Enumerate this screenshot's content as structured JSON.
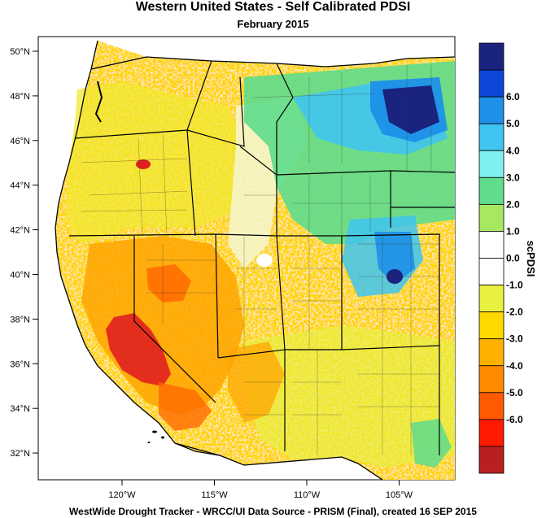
{
  "title": "Western United States - Self Calibrated PDSI",
  "subtitle": "February 2015",
  "footer": "WestWide Drought Tracker - WRCC/UI  Data Source - PRISM (Final), created 16 SEP 2015",
  "lat_ticks": [
    "50°N",
    "48°N",
    "46°N",
    "44°N",
    "42°N",
    "40°N",
    "38°N",
    "36°N",
    "34°N",
    "32°N"
  ],
  "lon_ticks": [
    "120°W",
    "115°W",
    "110°W",
    "105°W"
  ],
  "colorbar": {
    "title": "scPDSI",
    "labels": [
      "6.0",
      "5.0",
      "4.0",
      "3.0",
      "2.0",
      "1.0",
      "0.0",
      "-1.0",
      "-2.0",
      "-3.0",
      "-4.0",
      "-5.0",
      "-6.0"
    ],
    "colors": [
      "#1a237e",
      "#0d47d9",
      "#1e90e8",
      "#40c4f0",
      "#7ff0f0",
      "#5fdc8c",
      "#a8e860",
      "#ffffff",
      "#ffffff",
      "#e8f040",
      "#ffd800",
      "#ffb000",
      "#ff8a00",
      "#ff5a00",
      "#ff1a00",
      "#b82020"
    ]
  },
  "palette": {
    "dry_extreme": "#e02020",
    "dry_severe": "#ff6a00",
    "dry_moderate": "#ffa500",
    "dry_mild": "#ffd400",
    "near_normal_dry": "#e8f040",
    "neutral": "#ffffff",
    "wet_mild": "#a8e860",
    "wet_moderate": "#5fdc8c",
    "wet_high": "#40c4f0",
    "wet_very_high": "#1e90e8",
    "wet_extreme": "#1a237e"
  }
}
